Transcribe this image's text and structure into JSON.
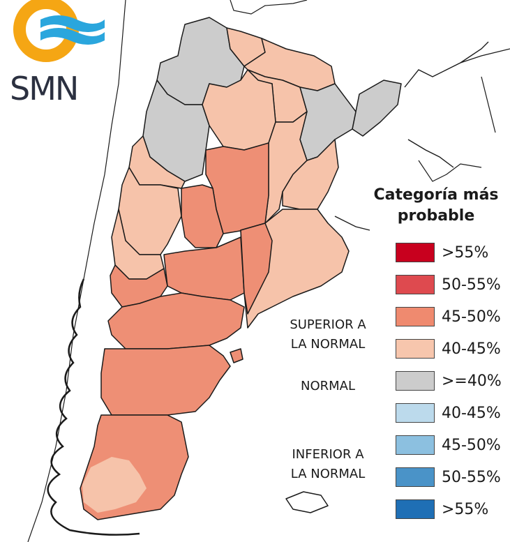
{
  "logo": {
    "text": "SMN",
    "colors": {
      "ring": "#f5a614",
      "waves": "#2aa6dd"
    }
  },
  "legend": {
    "title_line1": "Categoría más",
    "title_line2": "probable",
    "groups": {
      "superior": [
        "SUPERIOR A",
        "LA NORMAL"
      ],
      "normal": [
        "NORMAL"
      ],
      "inferior": [
        "INFERIOR A",
        "LA NORMAL"
      ]
    },
    "items": [
      {
        "label": ">55%",
        "color": "#c8001e"
      },
      {
        "label": "50-55%",
        "color": "#de4a4f"
      },
      {
        "label": "45-50%",
        "color": "#ef8a6f"
      },
      {
        "label": "40-45%",
        "color": "#f7c6ad"
      },
      {
        "label": ">=40%",
        "color": "#cccccc"
      },
      {
        "label": "40-45%",
        "color": "#bcdaec"
      },
      {
        "label": "45-50%",
        "color": "#8cc0e0"
      },
      {
        "label": "50-55%",
        "color": "#4a93c8"
      },
      {
        "label": ">55%",
        "color": "#1f6fb5"
      }
    ]
  },
  "map": {
    "colors": {
      "gray": "#cccccc",
      "light": "#f6c3aa",
      "mid": "#ee8f75",
      "border": "#1a1a1a"
    }
  }
}
